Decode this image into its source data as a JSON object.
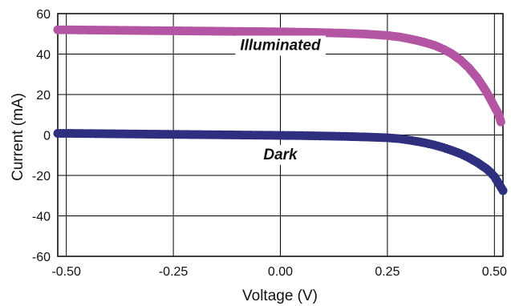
{
  "chart_data": {
    "type": "scatter",
    "title": "",
    "xlabel": "Voltage (V)",
    "ylabel": "Current (mA)",
    "xlim": [
      -0.52,
      0.52
    ],
    "ylim": [
      -60,
      60
    ],
    "xticks": [
      -0.5,
      -0.25,
      0.0,
      0.25,
      0.5
    ],
    "xtick_labels": [
      "-0.50",
      "-0.25",
      "0.00",
      "0.25",
      "0.50"
    ],
    "yticks": [
      60,
      40,
      20,
      0,
      -20,
      -40,
      -60
    ],
    "ytick_labels": [
      "60",
      "40",
      "20",
      "0",
      "-20",
      "-40",
      "-60"
    ],
    "grid": true,
    "legend": "none",
    "annotations": [
      {
        "text": "Illuminated",
        "x": 0.0,
        "y": 42
      },
      {
        "text": "Dark",
        "x": 0.0,
        "y": -12
      }
    ],
    "series": [
      {
        "color": "#b455a3",
        "points": [
          [
            -0.52,
            52.0
          ],
          [
            -0.5,
            52.0
          ],
          [
            -0.45,
            51.9
          ],
          [
            -0.4,
            51.8
          ],
          [
            -0.35,
            51.7
          ],
          [
            -0.3,
            51.6
          ],
          [
            -0.25,
            51.5
          ],
          [
            -0.2,
            51.4
          ],
          [
            -0.15,
            51.3
          ],
          [
            -0.1,
            51.2
          ],
          [
            -0.05,
            51.1
          ],
          [
            0.0,
            51.0
          ],
          [
            0.05,
            50.8
          ],
          [
            0.1,
            50.6
          ],
          [
            0.15,
            50.3
          ],
          [
            0.2,
            49.9
          ],
          [
            0.25,
            49.2
          ],
          [
            0.28,
            48.4
          ],
          [
            0.3,
            47.6
          ],
          [
            0.32,
            46.7
          ],
          [
            0.34,
            45.6
          ],
          [
            0.36,
            44.3
          ],
          [
            0.38,
            42.5
          ],
          [
            0.4,
            40.2
          ],
          [
            0.42,
            37.2
          ],
          [
            0.44,
            33.2
          ],
          [
            0.46,
            28.2
          ],
          [
            0.47,
            25.0
          ],
          [
            0.48,
            21.8
          ],
          [
            0.49,
            18.0
          ],
          [
            0.5,
            14.0
          ],
          [
            0.51,
            10.2
          ],
          [
            0.515,
            6.5
          ]
        ]
      },
      {
        "color": "#2f2f80",
        "points": [
          [
            -0.52,
            0.8
          ],
          [
            -0.5,
            0.8
          ],
          [
            -0.45,
            0.7
          ],
          [
            -0.4,
            0.6
          ],
          [
            -0.35,
            0.5
          ],
          [
            -0.3,
            0.4
          ],
          [
            -0.25,
            0.3
          ],
          [
            -0.2,
            0.2
          ],
          [
            -0.15,
            0.1
          ],
          [
            -0.1,
            0.0
          ],
          [
            -0.05,
            -0.1
          ],
          [
            0.0,
            -0.2
          ],
          [
            0.05,
            -0.3
          ],
          [
            0.1,
            -0.5
          ],
          [
            0.15,
            -0.7
          ],
          [
            0.2,
            -1.0
          ],
          [
            0.25,
            -1.4
          ],
          [
            0.28,
            -1.9
          ],
          [
            0.3,
            -2.5
          ],
          [
            0.32,
            -3.2
          ],
          [
            0.34,
            -4.0
          ],
          [
            0.36,
            -5.0
          ],
          [
            0.38,
            -6.2
          ],
          [
            0.4,
            -7.6
          ],
          [
            0.42,
            -9.2
          ],
          [
            0.44,
            -11.2
          ],
          [
            0.46,
            -13.6
          ],
          [
            0.48,
            -16.5
          ],
          [
            0.49,
            -18.3
          ],
          [
            0.5,
            -20.6
          ],
          [
            0.51,
            -24.0
          ],
          [
            0.52,
            -27.5
          ]
        ]
      }
    ]
  }
}
